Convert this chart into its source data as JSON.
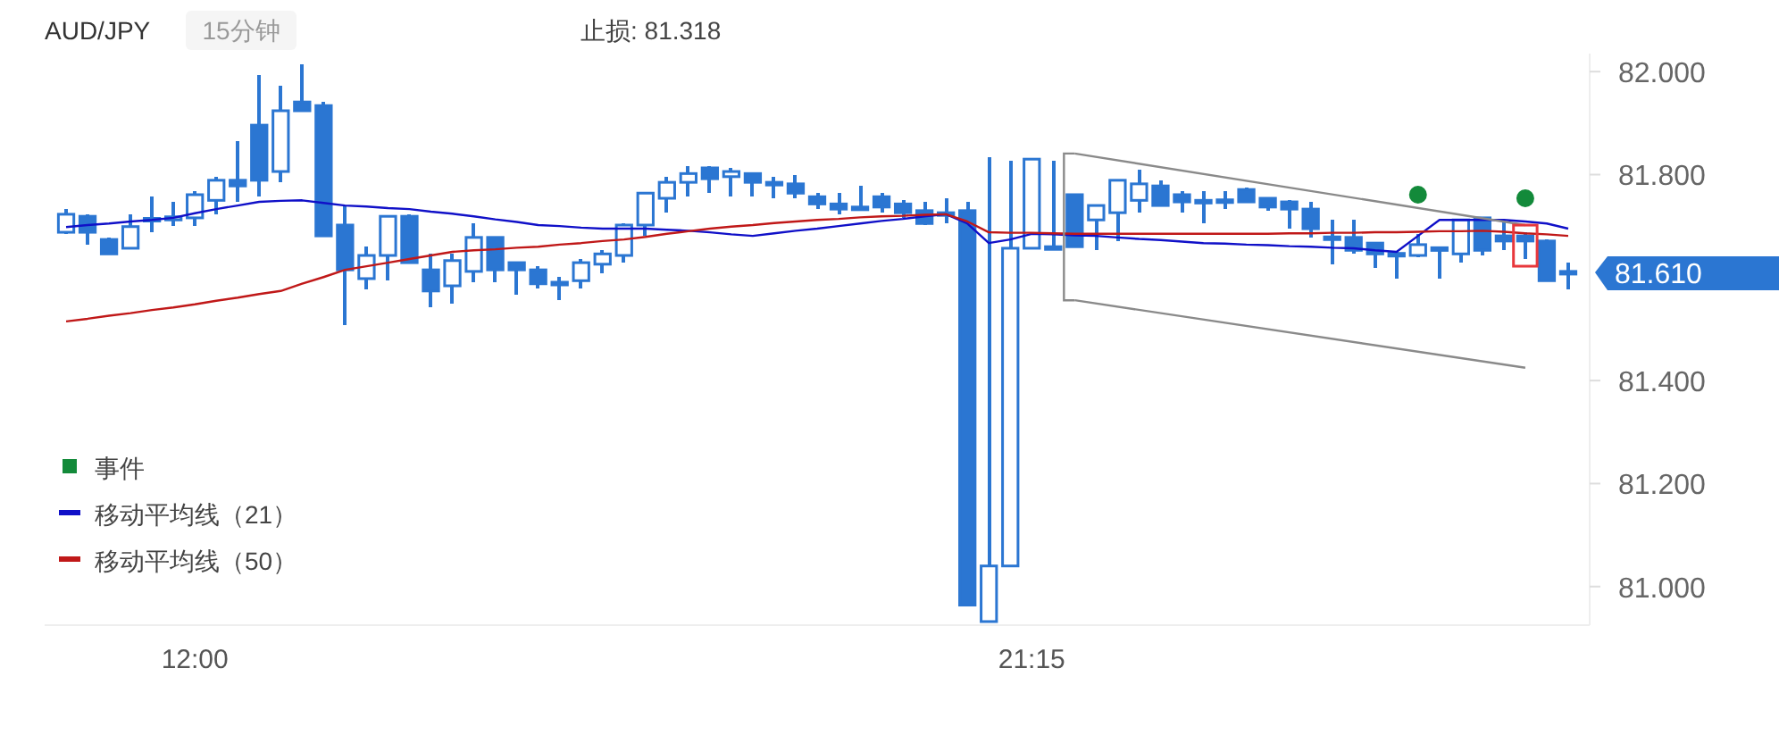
{
  "chart_data": {
    "type": "candlestick",
    "title": "AUD/JPY",
    "subtitle": "15分钟",
    "annotations": [
      "止损: 81.318",
      "81.610"
    ],
    "categories": [
      null,
      null,
      null,
      null,
      null,
      null,
      "12:00",
      null,
      null,
      null,
      null,
      null,
      null,
      null,
      null,
      null,
      null,
      null,
      null,
      null,
      null,
      null,
      null,
      null,
      null,
      null,
      null,
      null,
      null,
      null,
      null,
      null,
      null,
      null,
      null,
      null,
      null,
      null,
      null,
      null,
      null,
      null,
      null,
      null,
      null,
      "21:15",
      null,
      null,
      null,
      null,
      null,
      null,
      null,
      null,
      null,
      null,
      null,
      null,
      null,
      null,
      null,
      null,
      null,
      null,
      null,
      null,
      null,
      null,
      null,
      null,
      null
    ],
    "ylim": [
      80.925,
      82.035
    ],
    "yticks": [
      {
        "value": 81,
        "label": "81.000"
      },
      {
        "value": 81.2,
        "label": "81.200"
      },
      {
        "value": 81.4,
        "label": "81.400"
      },
      {
        "value": 81.8,
        "label": "81.800"
      },
      {
        "value": 82,
        "label": "82.000"
      }
    ],
    "grid": false,
    "legend": "bottom left",
    "color": "#2b76d2",
    "ohlc": [
      [
        81.688,
        81.733,
        81.685,
        81.723
      ],
      [
        81.719,
        81.723,
        81.664,
        81.688
      ],
      [
        81.674,
        81.678,
        81.646,
        81.646
      ],
      [
        81.657,
        81.723,
        81.657,
        81.699
      ],
      [
        81.712,
        81.757,
        81.688,
        81.715
      ],
      [
        81.712,
        81.747,
        81.7,
        81.718
      ],
      [
        81.716,
        81.768,
        81.7,
        81.761
      ],
      [
        81.75,
        81.796,
        81.723,
        81.789
      ],
      [
        81.789,
        81.865,
        81.747,
        81.778
      ],
      [
        81.896,
        81.993,
        81.757,
        81.789
      ],
      [
        81.806,
        81.972,
        81.785,
        81.924
      ],
      [
        81.941,
        82.014,
        81.924,
        81.924
      ],
      [
        81.934,
        81.941,
        81.681,
        81.681
      ],
      [
        81.702,
        81.74,
        81.508,
        81.615
      ],
      [
        81.598,
        81.66,
        81.577,
        81.643
      ],
      [
        81.643,
        81.719,
        81.594,
        81.719
      ],
      [
        81.719,
        81.723,
        81.629,
        81.629
      ],
      [
        81.615,
        81.646,
        81.542,
        81.574
      ],
      [
        81.584,
        81.646,
        81.549,
        81.633
      ],
      [
        81.612,
        81.705,
        81.591,
        81.678
      ],
      [
        81.678,
        81.678,
        81.591,
        81.615
      ],
      [
        81.629,
        81.629,
        81.567,
        81.615
      ],
      [
        81.615,
        81.622,
        81.578,
        81.588
      ],
      [
        81.591,
        81.601,
        81.556,
        81.588
      ],
      [
        81.594,
        81.636,
        81.578,
        81.629
      ],
      [
        81.626,
        81.653,
        81.608,
        81.646
      ],
      [
        81.643,
        81.705,
        81.629,
        81.702
      ],
      [
        81.702,
        81.764,
        81.681,
        81.764
      ],
      [
        81.754,
        81.796,
        81.726,
        81.785
      ],
      [
        81.785,
        81.816,
        81.757,
        81.802
      ],
      [
        81.813,
        81.816,
        81.764,
        81.792
      ],
      [
        81.796,
        81.813,
        81.757,
        81.806
      ],
      [
        81.802,
        81.802,
        81.757,
        81.785
      ],
      [
        81.785,
        81.796,
        81.754,
        81.782
      ],
      [
        81.782,
        81.799,
        81.754,
        81.764
      ],
      [
        81.757,
        81.764,
        81.733,
        81.743
      ],
      [
        81.743,
        81.764,
        81.723,
        81.733
      ],
      [
        81.737,
        81.778,
        81.733,
        81.733
      ],
      [
        81.757,
        81.764,
        81.726,
        81.737
      ],
      [
        81.743,
        81.75,
        81.716,
        81.726
      ],
      [
        81.73,
        81.747,
        81.702,
        81.705
      ],
      [
        81.726,
        81.754,
        81.705,
        81.723
      ],
      [
        81.73,
        81.747,
        80.964,
        80.964
      ],
      [
        80.932,
        81.834,
        80.932,
        81.04
      ],
      [
        81.04,
        81.827,
        81.04,
        81.657
      ],
      [
        81.657,
        81.83,
        81.657,
        81.83
      ],
      [
        81.66,
        81.827,
        81.657,
        81.657
      ],
      [
        81.761,
        81.761,
        81.66,
        81.66
      ],
      [
        81.712,
        81.74,
        81.653,
        81.74
      ],
      [
        81.726,
        81.789,
        81.671,
        81.789
      ],
      [
        81.75,
        81.809,
        81.726,
        81.782
      ],
      [
        81.778,
        81.789,
        81.74,
        81.74
      ],
      [
        81.761,
        81.768,
        81.726,
        81.747
      ],
      [
        81.75,
        81.768,
        81.705,
        81.747
      ],
      [
        81.749,
        81.768,
        81.733,
        81.751
      ],
      [
        81.771,
        81.775,
        81.747,
        81.747
      ],
      [
        81.754,
        81.754,
        81.73,
        81.737
      ],
      [
        81.747,
        81.75,
        81.695,
        81.733
      ],
      [
        81.733,
        81.747,
        81.678,
        81.695
      ],
      [
        81.679,
        81.712,
        81.626,
        81.677
      ],
      [
        81.678,
        81.712,
        81.646,
        81.653
      ],
      [
        81.667,
        81.667,
        81.619,
        81.646
      ],
      [
        81.647,
        81.65,
        81.598,
        81.646
      ],
      [
        81.643,
        81.684,
        81.639,
        81.664
      ],
      [
        81.658,
        81.66,
        81.598,
        81.657
      ],
      [
        81.646,
        81.712,
        81.629,
        81.712
      ],
      [
        81.716,
        81.716,
        81.643,
        81.653
      ],
      [
        81.681,
        81.712,
        81.653,
        81.671
      ],
      [
        81.681,
        81.688,
        81.636,
        81.671
      ],
      [
        81.671,
        81.674,
        81.594,
        81.594
      ],
      [
        81.612,
        81.629,
        81.577,
        81.61
      ]
    ],
    "series": [
      {
        "type": "line",
        "name": "移动平均线（21）",
        "color": "#1010c8",
        "values": [
          81.698,
          81.702,
          81.705,
          81.709,
          81.712,
          81.716,
          81.725,
          81.733,
          81.74,
          81.747,
          81.749,
          81.75,
          81.745,
          81.74,
          81.738,
          81.735,
          81.733,
          81.728,
          81.724,
          81.719,
          81.713,
          81.708,
          81.702,
          81.7,
          81.697,
          81.695,
          81.695,
          81.695,
          81.693,
          81.691,
          81.688,
          81.684,
          81.681,
          81.686,
          81.691,
          81.695,
          81.7,
          81.705,
          81.71,
          81.714,
          81.719,
          81.723,
          81.705,
          81.667,
          81.674,
          81.685,
          81.684,
          81.682,
          81.681,
          81.678,
          81.675,
          81.673,
          81.67,
          81.667,
          81.666,
          81.664,
          81.663,
          81.661,
          81.66,
          81.658,
          81.657,
          81.653,
          81.65,
          81.681,
          81.712,
          81.712,
          81.712,
          81.712,
          81.709,
          81.705,
          81.695
        ]
      },
      {
        "type": "line",
        "name": "移动平均线（50）",
        "color": "#c01818",
        "values": [
          81.515,
          81.52,
          81.526,
          81.531,
          81.537,
          81.542,
          81.548,
          81.555,
          81.561,
          81.568,
          81.574,
          81.588,
          81.601,
          81.615,
          81.622,
          81.629,
          81.636,
          81.643,
          81.65,
          81.653,
          81.655,
          81.658,
          81.66,
          81.664,
          81.667,
          81.671,
          81.674,
          81.679,
          81.685,
          81.69,
          81.695,
          81.699,
          81.702,
          81.706,
          81.709,
          81.712,
          81.714,
          81.717,
          81.719,
          81.72,
          81.722,
          81.723,
          81.709,
          81.688,
          81.687,
          81.687,
          81.686,
          81.685,
          81.685,
          81.685,
          81.685,
          81.685,
          81.685,
          81.685,
          81.685,
          81.685,
          81.685,
          81.686,
          81.686,
          81.687,
          81.687,
          81.688,
          81.688,
          81.689,
          81.69,
          81.69,
          81.691,
          81.689,
          81.686,
          81.684,
          81.681
        ]
      },
      {
        "type": "scatter",
        "name": "事件",
        "color": "#138a3a",
        "marker": "circle",
        "values": [
          null,
          null,
          null,
          null,
          null,
          null,
          null,
          null,
          null,
          null,
          null,
          null,
          null,
          null,
          null,
          null,
          null,
          null,
          null,
          null,
          null,
          null,
          null,
          null,
          null,
          null,
          null,
          null,
          null,
          null,
          null,
          null,
          null,
          null,
          null,
          null,
          null,
          null,
          null,
          null,
          null,
          null,
          null,
          null,
          null,
          null,
          null,
          null,
          null,
          null,
          null,
          null,
          null,
          null,
          null,
          null,
          null,
          null,
          null,
          null,
          null,
          null,
          null,
          81.761,
          null,
          null,
          null,
          null,
          81.754,
          null,
          null
        ]
      },
      {
        "type": "line",
        "color": "#8a8a8a",
        "values": [
          null,
          null,
          null,
          null,
          null,
          null,
          null,
          null,
          null,
          null,
          null,
          null,
          null,
          null,
          null,
          null,
          null,
          null,
          null,
          null,
          null,
          null,
          null,
          null,
          null,
          null,
          null,
          null,
          null,
          null,
          null,
          null,
          null,
          null,
          null,
          null,
          null,
          null,
          null,
          null,
          null,
          null,
          null,
          null,
          null,
          null,
          null,
          81.841,
          null,
          null,
          null,
          null,
          null,
          null,
          null,
          null,
          null,
          null,
          null,
          null,
          null,
          null,
          null,
          null,
          null,
          null,
          null,
          null,
          81.702,
          null,
          null
        ]
      },
      {
        "type": "line",
        "color": "#8a8a8a",
        "values": [
          null,
          null,
          null,
          null,
          null,
          null,
          null,
          null,
          null,
          null,
          null,
          null,
          null,
          null,
          null,
          null,
          null,
          null,
          null,
          null,
          null,
          null,
          null,
          null,
          null,
          null,
          null,
          null,
          null,
          null,
          null,
          null,
          null,
          null,
          null,
          null,
          null,
          null,
          null,
          null,
          null,
          null,
          null,
          null,
          null,
          null,
          null,
          81.556,
          null,
          null,
          null,
          null,
          null,
          null,
          null,
          null,
          null,
          null,
          null,
          null,
          null,
          null,
          null,
          null,
          null,
          null,
          null,
          null,
          81.425,
          null,
          null
        ]
      }
    ]
  }
}
